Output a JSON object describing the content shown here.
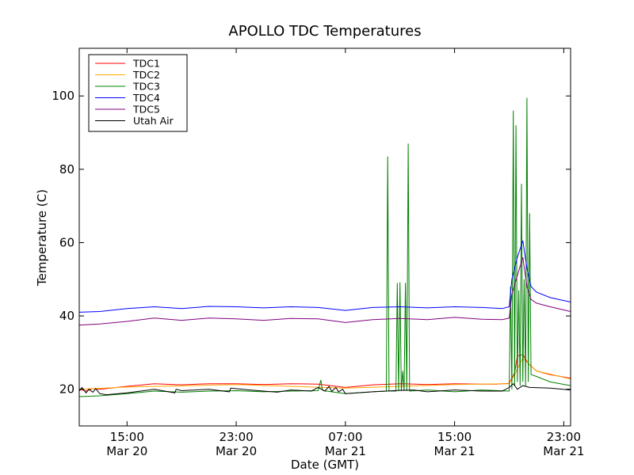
{
  "chart_data": {
    "type": "line",
    "title": "APOLLO TDC Temperatures",
    "xlabel": "Date (GMT)",
    "ylabel": "Temperature (C)",
    "xlim_hours_from_first_tick": [
      -3.5,
      32.5
    ],
    "x_axis_start": "Mar 20 15:00",
    "ylim": [
      10,
      113
    ],
    "x_ticks": [
      {
        "hours": 0,
        "time": "15:00",
        "date": "Mar 20"
      },
      {
        "hours": 8,
        "time": "23:00",
        "date": "Mar 20"
      },
      {
        "hours": 16,
        "time": "07:00",
        "date": "Mar 21"
      },
      {
        "hours": 24,
        "time": "15:00",
        "date": "Mar 21"
      },
      {
        "hours": 32,
        "time": "23:00",
        "date": "Mar 21"
      }
    ],
    "y_ticks": [
      20,
      40,
      60,
      80,
      100
    ],
    "grid": false,
    "legend": "top-left",
    "series": [
      {
        "name": "TDC1",
        "color": "#ff0000",
        "x": [
          -3.5,
          -3.0,
          -2.5,
          -2.0,
          0,
          2,
          4,
          6,
          8,
          10,
          12,
          14,
          16,
          18,
          20,
          22,
          24,
          26,
          27,
          28,
          28.4,
          28.6,
          29.0,
          29.4,
          30.0,
          31.0,
          32.5
        ],
        "y": [
          20,
          19.5,
          20.2,
          20.0,
          20.8,
          21.5,
          21.2,
          21.5,
          21.5,
          21.3,
          21.5,
          21.4,
          20.5,
          21.2,
          21.5,
          21.3,
          21.5,
          21.4,
          21.4,
          21.6,
          24.5,
          29.0,
          29.5,
          27.0,
          25.0,
          24.0,
          23.0
        ]
      },
      {
        "name": "TDC2",
        "color": "#ffa500",
        "x": [
          -3.5,
          0,
          8,
          16,
          24,
          28,
          28.4,
          29.0,
          30.0,
          32.5
        ],
        "y": [
          20.0,
          20.6,
          21.3,
          20.3,
          21.3,
          21.5,
          24.0,
          28.5,
          25.0,
          22.8
        ]
      },
      {
        "name": "TDC3",
        "color": "#008000",
        "x": [
          -3.5,
          -2.0,
          0,
          2,
          4,
          6,
          8,
          10,
          12,
          14,
          14.2,
          14.3,
          14.4,
          16,
          18,
          19.0,
          19.1,
          19.2,
          19.3,
          19.7,
          19.8,
          19.9,
          20.0,
          20.1,
          20.2,
          20.3,
          20.4,
          20.5,
          20.6,
          20.7,
          22,
          24,
          26,
          28,
          28.1,
          28.2,
          28.3,
          28.4,
          28.5,
          28.6,
          28.7,
          28.8,
          28.9,
          29.0,
          29.1,
          29.2,
          29.3,
          29.4,
          29.5,
          29.6,
          30.0,
          31.0,
          32.5
        ],
        "y": [
          18.0,
          18.2,
          18.8,
          19.5,
          19.2,
          19.5,
          19.6,
          19.3,
          19.5,
          19.6,
          22.5,
          20.0,
          19.6,
          18.8,
          19.3,
          19.5,
          83.5,
          19.5,
          19.5,
          19.5,
          49.0,
          19.5,
          49.2,
          19.5,
          25.0,
          19.5,
          49.0,
          19.5,
          87.0,
          19.5,
          19.8,
          19.3,
          19.8,
          19.5,
          48.0,
          20.0,
          96.0,
          21.0,
          92.0,
          22.0,
          47.0,
          21.0,
          76.0,
          22.0,
          50.0,
          21.0,
          99.5,
          22.0,
          68.0,
          24.0,
          23.5,
          22.0,
          21.0
        ]
      },
      {
        "name": "TDC4",
        "color": "#0000ff",
        "x": [
          -3.5,
          -2.0,
          0,
          2,
          4,
          6,
          8,
          10,
          12,
          14,
          16,
          18,
          20,
          22,
          24,
          26,
          27.5,
          28.0,
          28.2,
          28.6,
          29.0,
          29.3,
          29.6,
          30.0,
          31.0,
          32.5
        ],
        "y": [
          41.0,
          41.2,
          42.0,
          42.5,
          42.0,
          42.6,
          42.5,
          42.2,
          42.5,
          42.3,
          41.5,
          42.3,
          42.5,
          42.2,
          42.5,
          42.3,
          42.0,
          42.5,
          50.0,
          56.0,
          60.5,
          53.0,
          48.0,
          46.5,
          45.0,
          43.8
        ]
      },
      {
        "name": "TDC5",
        "color": "#800080",
        "x": [
          -3.5,
          -2.0,
          0,
          2,
          4,
          6,
          8,
          10,
          12,
          14,
          16,
          18,
          20,
          22,
          24,
          26,
          27.5,
          28.0,
          28.2,
          28.6,
          29.0,
          29.3,
          29.6,
          30.0,
          31.0,
          32.5
        ],
        "y": [
          37.5,
          37.8,
          38.5,
          39.4,
          38.8,
          39.4,
          39.2,
          38.8,
          39.3,
          39.2,
          38.2,
          39.0,
          39.3,
          39.0,
          39.6,
          39.1,
          39.0,
          39.4,
          46.0,
          51.0,
          56.0,
          48.0,
          44.5,
          43.5,
          42.5,
          41.2
        ]
      },
      {
        "name": "Utah Air",
        "color": "#000000",
        "x": [
          -3.5,
          -3.3,
          -3.0,
          -2.8,
          -2.5,
          -2.3,
          -2.0,
          -1.5,
          0,
          2,
          3.5,
          3.6,
          4,
          6,
          7.5,
          7.6,
          9,
          11,
          12,
          13.5,
          14,
          14.5,
          14.8,
          15.0,
          15.3,
          15.5,
          15.8,
          16,
          18,
          20,
          21,
          22,
          24,
          26,
          27.5,
          28.0,
          28.3,
          28.6,
          29.0,
          29.5,
          31.0,
          32.5
        ],
        "y": [
          19.5,
          20.5,
          19.0,
          20.0,
          19.2,
          20.2,
          18.8,
          18.5,
          19.0,
          20.0,
          19.0,
          20.0,
          19.6,
          20.0,
          19.3,
          20.3,
          19.8,
          19.2,
          19.8,
          19.5,
          20.5,
          19.5,
          20.8,
          19.4,
          20.5,
          19.3,
          20.0,
          18.8,
          19.3,
          19.7,
          19.8,
          19.3,
          19.8,
          19.5,
          19.5,
          20.5,
          21.5,
          20.0,
          21.0,
          20.5,
          20.3,
          19.8
        ]
      }
    ]
  }
}
